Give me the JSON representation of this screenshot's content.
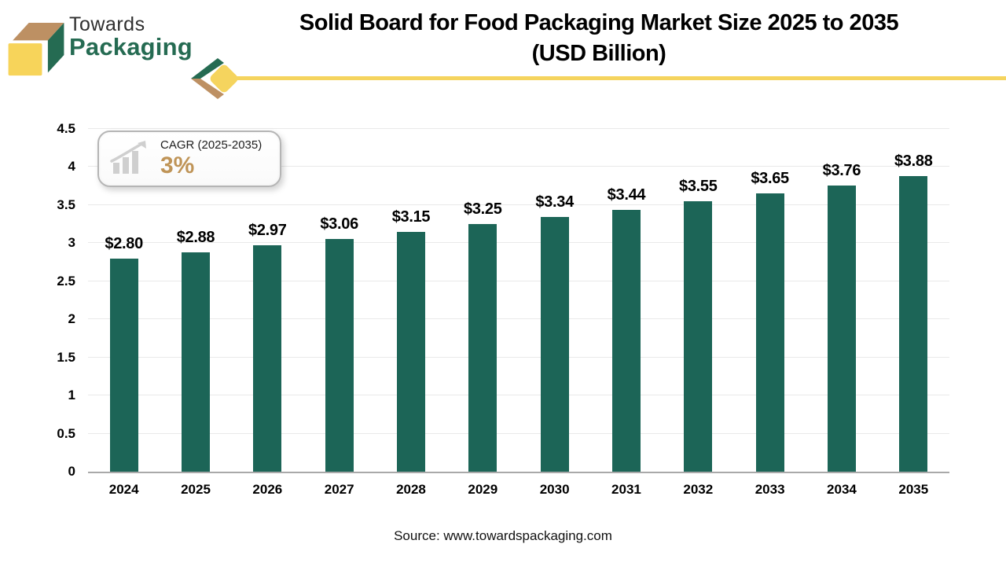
{
  "brand": {
    "name_line1": "Towards",
    "name_line2": "Packaging"
  },
  "header": {
    "title_line1": "Solid Board for Food Packaging Market Size 2025 to 2035",
    "title_line2": "(USD Billion)"
  },
  "cagr_badge": {
    "label": "CAGR (2025-2035)",
    "value": "3%",
    "icon": "growth-chart-icon"
  },
  "chart_data": {
    "type": "bar",
    "title": "Solid Board for Food Packaging Market Size 2025 to 2035 (USD Billion)",
    "categories": [
      "2024",
      "2025",
      "2026",
      "2027",
      "2028",
      "2029",
      "2030",
      "2031",
      "2032",
      "2033",
      "2034",
      "2035"
    ],
    "values": [
      2.8,
      2.88,
      2.97,
      3.06,
      3.15,
      3.25,
      3.34,
      3.44,
      3.55,
      3.65,
      3.76,
      3.88
    ],
    "bar_labels": [
      "$2.80",
      "$2.88",
      "$2.97",
      "$3.06",
      "$3.15",
      "$3.25",
      "$3.34",
      "$3.44",
      "$3.55",
      "$3.65",
      "$3.76",
      "$3.88"
    ],
    "xlabel": "",
    "ylabel": "",
    "ylim": [
      0,
      4.5
    ],
    "ytick_step": 0.5,
    "yticks": [
      "0",
      "0.5",
      "1",
      "1.5",
      "2",
      "2.5",
      "3",
      "3.5",
      "4",
      "4.5"
    ],
    "grid": true,
    "legend": "none",
    "bar_color": "#1C6557"
  },
  "footer": {
    "source": "Source: www.towardspackaging.com"
  },
  "colors": {
    "brand_green": "#256B52",
    "brand_yellow": "#F5D45E",
    "brand_tan": "#BD9063",
    "cagr_value_color": "#BF9457",
    "axis_line": "#A9A9A9",
    "gridline": "#E9E9E9"
  }
}
